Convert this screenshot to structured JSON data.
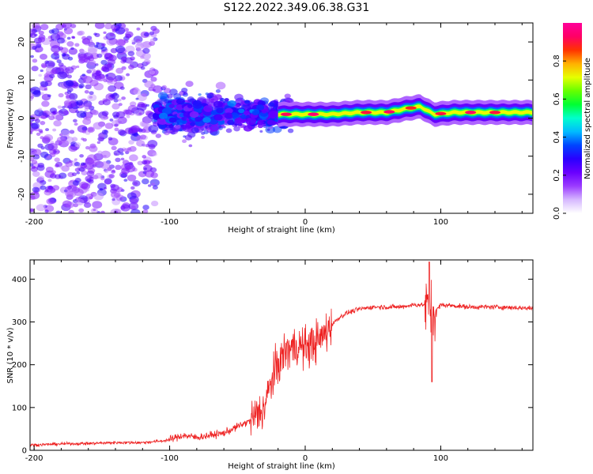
{
  "page_title": "S122.2022.349.06.38.G31",
  "colors": {
    "snr_line": "#ee2222",
    "colormap": [
      "#ffffff",
      "#d6b8ff",
      "#9b3cff",
      "#6a00ff",
      "#2a00ff",
      "#0044ff",
      "#00bbff",
      "#00ffcc",
      "#00ff33",
      "#66ff00",
      "#e6ff00",
      "#ffb000",
      "#ff3300",
      "#ff0066",
      "#ff0099"
    ]
  },
  "chart_data": [
    {
      "type": "heatmap",
      "title": "",
      "xlabel": "Height of straight line (km)",
      "ylabel": "Frequency (Hz)",
      "xlim": [
        -203,
        168
      ],
      "ylim": [
        -25,
        25
      ],
      "xticks": [
        {
          "value": -200,
          "label": "-200"
        },
        {
          "value": -100,
          "label": "-100"
        },
        {
          "value": 0,
          "label": "0"
        },
        {
          "value": 100,
          "label": "100"
        }
      ],
      "yticks": [
        {
          "value": -20,
          "label": "-20"
        },
        {
          "value": -10,
          "label": "-10"
        },
        {
          "value": 0,
          "label": "0"
        },
        {
          "value": 10,
          "label": "10"
        },
        {
          "value": 20,
          "label": "20"
        }
      ],
      "colorbar": {
        "label": "Normalized spectral amplitude",
        "range": [
          0,
          1
        ],
        "ticks": [
          {
            "value": 0.0,
            "label": "0.0"
          },
          {
            "value": 0.2,
            "label": "0.2"
          },
          {
            "value": 0.4,
            "label": "0.4"
          },
          {
            "value": 0.6,
            "label": "0.6"
          },
          {
            "value": 0.8,
            "label": "0.8"
          }
        ]
      },
      "ridge": [
        {
          "x": -15,
          "freq": 1.0
        },
        {
          "x": 0,
          "freq": 1.0
        },
        {
          "x": 20,
          "freq": 1.0
        },
        {
          "x": 40,
          "freq": 1.5
        },
        {
          "x": 60,
          "freq": 1.5
        },
        {
          "x": 75,
          "freq": 2.5
        },
        {
          "x": 85,
          "freq": 3.0
        },
        {
          "x": 95,
          "freq": 1.0
        },
        {
          "x": 110,
          "freq": 1.5
        },
        {
          "x": 140,
          "freq": 1.5
        },
        {
          "x": 168,
          "freq": 1.5
        }
      ]
    },
    {
      "type": "line",
      "title": "",
      "xlabel": "Height of straight line (km)",
      "ylabel": "SNR (10 * v/v)",
      "xlim": [
        -203,
        168
      ],
      "ylim": [
        0,
        445
      ],
      "xticks": [
        {
          "value": -200,
          "label": "-200"
        },
        {
          "value": -100,
          "label": "-100"
        },
        {
          "value": 0,
          "label": "0"
        },
        {
          "value": 100,
          "label": "100"
        }
      ],
      "yticks": [
        {
          "value": 0,
          "label": "0"
        },
        {
          "value": 100,
          "label": "100"
        },
        {
          "value": 200,
          "label": "200"
        },
        {
          "value": 300,
          "label": "300"
        },
        {
          "value": 400,
          "label": "400"
        }
      ],
      "series": [
        {
          "x": [
            -203,
            -180,
            -160,
            -140,
            -120,
            -105,
            -100,
            -90,
            -80,
            -70,
            -60,
            -50,
            -40,
            -30,
            -25,
            -20,
            -15,
            -10,
            -5,
            0,
            5,
            10,
            15,
            20,
            25,
            30,
            40,
            50,
            60,
            70,
            80,
            88,
            92,
            95,
            100,
            110,
            120,
            140,
            168
          ],
          "y": [
            12,
            15,
            16,
            18,
            18,
            22,
            25,
            35,
            30,
            35,
            40,
            55,
            70,
            100,
            160,
            200,
            230,
            240,
            245,
            240,
            250,
            255,
            275,
            295,
            310,
            320,
            330,
            335,
            335,
            335,
            340,
            340,
            330,
            320,
            340,
            338,
            335,
            335,
            332
          ]
        }
      ]
    }
  ]
}
